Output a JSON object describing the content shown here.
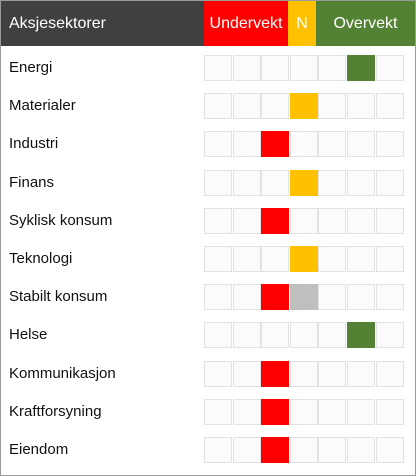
{
  "header": {
    "title": "Aksjesektorer",
    "underweight_label": "Undervekt",
    "neutral_label": "N",
    "overweight_label": "Overvekt"
  },
  "colors": {
    "header_bg": "#404040",
    "underweight": "#ff0000",
    "neutral": "#ffc000",
    "overweight": "#548235",
    "cell_empty": "#fbfbfb",
    "cell_border": "#e2e2e2",
    "previous_position": "#bfbfbf"
  },
  "scale": {
    "positions": 7,
    "underweight_positions": [
      1,
      2,
      3
    ],
    "neutral_positions": [
      4
    ],
    "overweight_positions": [
      5,
      6,
      7
    ]
  },
  "rows": [
    {
      "label": "Energi",
      "position": 6
    },
    {
      "label": "Materialer",
      "position": 4
    },
    {
      "label": "Industri",
      "position": 3
    },
    {
      "label": "Finans",
      "position": 4
    },
    {
      "label": "Syklisk konsum",
      "position": 3
    },
    {
      "label": "Teknologi",
      "position": 4
    },
    {
      "label": "Stabilt konsum",
      "position": 3,
      "previous_position": 4
    },
    {
      "label": "Helse",
      "position": 6
    },
    {
      "label": "Kommunikasjon",
      "position": 3
    },
    {
      "label": "Kraftforsyning",
      "position": 3
    },
    {
      "label": "Eiendom",
      "position": 3
    }
  ]
}
